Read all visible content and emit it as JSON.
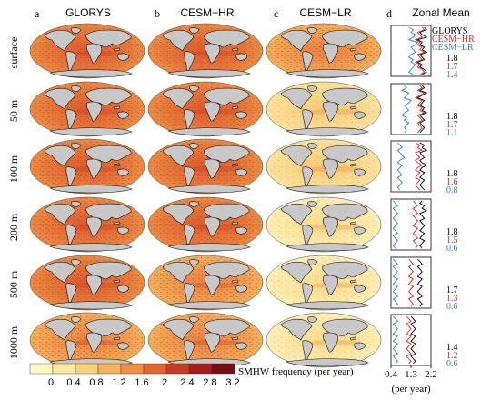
{
  "figure": {
    "panel_letters": [
      "a",
      "b",
      "c",
      "d"
    ],
    "column_titles": [
      "GLORYS",
      "CESM−HR",
      "CESM−LR",
      "Zonal Mean"
    ],
    "row_labels": [
      "surface",
      "50 m",
      "100 m",
      "200 m",
      "500 m",
      "1000 m"
    ],
    "colorbar": {
      "tick_labels": [
        "0",
        "0.4",
        "0.8",
        "1.2",
        "1.6",
        "2",
        "2.4",
        "2.8",
        "3.2"
      ],
      "colors": [
        "#fff7c4",
        "#fde9a2",
        "#f9d27c",
        "#f5b45c",
        "#ef8f42",
        "#e06530",
        "#c93a22",
        "#a51c1b",
        "#7a0c16"
      ],
      "label": "SMHW frequency  (per year)"
    },
    "zonal_axis": {
      "tick_labels": [
        "0.4",
        "1.3",
        "2.2"
      ],
      "xlabel": "(per year)"
    },
    "colors": {
      "GLORYS": "#000000",
      "CESM−HR": "#d62728",
      "CESM−LR": "#3a7dc9",
      "land": "#c8c8c8"
    }
  },
  "chart_data": {
    "type": "line",
    "title": "Zonal Mean",
    "xlabel": "(per year)",
    "xlim": [
      0.4,
      2.2
    ],
    "xticks": [
      0.4,
      1.3,
      2.2
    ],
    "legend": [
      "GLORYS",
      "CESM−HR",
      "CESM−LR"
    ],
    "legend_position": "top-right",
    "global_means": [
      {
        "depth": "surface",
        "GLORYS": "1.8",
        "CESM−HR": "1.7",
        "CESM−LR": "1.4"
      },
      {
        "depth": "50 m",
        "GLORYS": "1.8",
        "CESM−HR": "1.7",
        "CESM−LR": "1.1"
      },
      {
        "depth": "100 m",
        "GLORYS": "1.8",
        "CESM−HR": "1.6",
        "CESM−LR": "0.8"
      },
      {
        "depth": "200 m",
        "GLORYS": "1.8",
        "CESM−HR": "1.5",
        "CESM−LR": "0.6"
      },
      {
        "depth": "500 m",
        "GLORYS": "1.7",
        "CESM−HR": "1.3",
        "CESM−LR": "0.6"
      },
      {
        "depth": "1000 m",
        "GLORYS": "1.4",
        "CESM−HR": "1.2",
        "CESM−LR": "0.6"
      }
    ],
    "profiles": [
      {
        "depth": "surface",
        "series": [
          {
            "name": "GLORYS",
            "values": [
              1.9,
              2.0,
              1.7,
              1.8,
              2.0,
              1.6,
              1.8,
              1.7,
              1.9,
              1.8,
              2.0,
              1.7,
              1.8,
              1.9,
              1.6,
              1.8,
              1.7,
              1.9,
              2.0,
              1.8
            ]
          },
          {
            "name": "CESM−HR",
            "values": [
              1.8,
              1.9,
              1.6,
              1.7,
              1.8,
              1.5,
              1.7,
              1.6,
              1.8,
              1.7,
              1.9,
              1.6,
              1.7,
              1.8,
              1.5,
              1.7,
              1.6,
              1.8,
              1.9,
              1.7
            ]
          },
          {
            "name": "CESM−LR",
            "values": [
              1.2,
              1.4,
              1.3,
              1.5,
              1.4,
              1.2,
              1.6,
              1.5,
              1.3,
              1.4,
              1.5,
              1.3,
              1.2,
              1.4,
              1.3,
              1.5,
              1.4,
              1.3,
              1.2,
              1.4
            ]
          }
        ]
      },
      {
        "depth": "50 m",
        "series": [
          {
            "name": "GLORYS",
            "values": [
              1.8,
              1.9,
              1.7,
              2.0,
              1.8,
              1.6,
              1.9,
              1.8,
              1.7,
              1.9,
              1.8,
              2.0,
              1.7,
              1.8,
              1.9,
              1.7,
              1.8,
              1.9,
              1.8,
              1.7
            ]
          },
          {
            "name": "CESM−HR",
            "values": [
              1.7,
              1.8,
              1.6,
              1.9,
              1.7,
              1.5,
              1.8,
              1.7,
              1.6,
              1.8,
              1.7,
              1.9,
              1.6,
              1.7,
              1.8,
              1.6,
              1.7,
              1.8,
              1.7,
              1.6
            ]
          },
          {
            "name": "CESM−LR",
            "values": [
              1.0,
              1.1,
              0.9,
              1.2,
              1.1,
              1.0,
              1.3,
              1.2,
              1.0,
              1.1,
              1.2,
              1.0,
              0.9,
              1.1,
              1.0,
              1.2,
              1.1,
              1.0,
              1.1,
              1.0
            ]
          }
        ]
      },
      {
        "depth": "100 m",
        "series": [
          {
            "name": "GLORYS",
            "values": [
              1.7,
              1.9,
              1.8,
              2.0,
              1.7,
              1.8,
              1.9,
              1.7,
              1.8,
              2.0,
              1.8,
              1.7,
              1.9,
              1.8,
              1.7,
              1.9,
              1.8,
              1.7,
              1.8,
              1.9
            ]
          },
          {
            "name": "CESM−HR",
            "values": [
              1.5,
              1.7,
              1.6,
              1.8,
              1.5,
              1.6,
              1.7,
              1.5,
              1.6,
              1.8,
              1.6,
              1.5,
              1.7,
              1.6,
              1.5,
              1.7,
              1.6,
              1.5,
              1.6,
              1.7
            ]
          },
          {
            "name": "CESM−LR",
            "values": [
              0.7,
              0.8,
              0.9,
              0.7,
              0.8,
              0.9,
              1.0,
              0.8,
              0.7,
              0.9,
              0.8,
              0.7,
              0.8,
              0.9,
              0.7,
              0.8,
              0.9,
              0.8,
              0.7,
              0.8
            ]
          }
        ]
      },
      {
        "depth": "200 m",
        "series": [
          {
            "name": "GLORYS",
            "values": [
              1.8,
              1.7,
              1.9,
              1.8,
              2.0,
              1.7,
              1.8,
              1.9,
              1.7,
              1.8,
              1.9,
              1.8,
              1.7,
              1.9,
              1.8,
              1.7,
              1.9,
              1.8,
              1.7,
              1.8
            ]
          },
          {
            "name": "CESM−HR",
            "values": [
              1.4,
              1.5,
              1.6,
              1.4,
              1.5,
              1.6,
              1.4,
              1.5,
              1.6,
              1.5,
              1.4,
              1.6,
              1.5,
              1.4,
              1.5,
              1.6,
              1.4,
              1.5,
              1.6,
              1.5
            ]
          },
          {
            "name": "CESM−LR",
            "values": [
              0.5,
              0.6,
              0.7,
              0.5,
              0.6,
              0.7,
              0.6,
              0.5,
              0.6,
              0.7,
              0.6,
              0.5,
              0.6,
              0.7,
              0.5,
              0.6,
              0.7,
              0.6,
              0.5,
              0.6
            ]
          }
        ]
      },
      {
        "depth": "500 m",
        "series": [
          {
            "name": "GLORYS",
            "values": [
              1.6,
              1.7,
              1.8,
              1.6,
              1.7,
              1.8,
              1.7,
              1.6,
              1.8,
              1.7,
              1.6,
              1.8,
              1.7,
              1.6,
              1.7,
              1.8,
              1.6,
              1.7,
              1.8,
              1.7
            ]
          },
          {
            "name": "CESM−HR",
            "values": [
              1.2,
              1.3,
              1.4,
              1.2,
              1.3,
              1.4,
              1.3,
              1.2,
              1.4,
              1.3,
              1.2,
              1.4,
              1.3,
              1.2,
              1.3,
              1.4,
              1.2,
              1.3,
              1.4,
              1.3
            ]
          },
          {
            "name": "CESM−LR",
            "values": [
              0.5,
              0.6,
              0.7,
              0.5,
              0.6,
              0.7,
              0.6,
              0.5,
              0.7,
              0.6,
              0.5,
              0.7,
              0.6,
              0.5,
              0.6,
              0.7,
              0.5,
              0.6,
              0.7,
              0.6
            ]
          }
        ]
      },
      {
        "depth": "1000 m",
        "series": [
          {
            "name": "GLORYS",
            "values": [
              1.3,
              1.4,
              1.5,
              1.3,
              1.4,
              1.5,
              1.4,
              1.3,
              1.5,
              1.4,
              1.3,
              1.5,
              1.4,
              1.3,
              1.4,
              1.5,
              1.3,
              1.4,
              1.5,
              1.4
            ]
          },
          {
            "name": "CESM−HR",
            "values": [
              1.1,
              1.2,
              1.3,
              1.1,
              1.2,
              1.3,
              1.2,
              1.1,
              1.3,
              1.2,
              1.1,
              1.3,
              1.2,
              1.1,
              1.2,
              1.3,
              1.1,
              1.2,
              1.3,
              1.2
            ]
          },
          {
            "name": "CESM−LR",
            "values": [
              0.5,
              0.6,
              0.7,
              0.5,
              0.6,
              0.7,
              0.6,
              0.5,
              0.7,
              0.6,
              0.5,
              0.7,
              0.6,
              0.5,
              0.6,
              0.7,
              0.5,
              0.6,
              0.7,
              0.6
            ]
          }
        ]
      }
    ]
  }
}
